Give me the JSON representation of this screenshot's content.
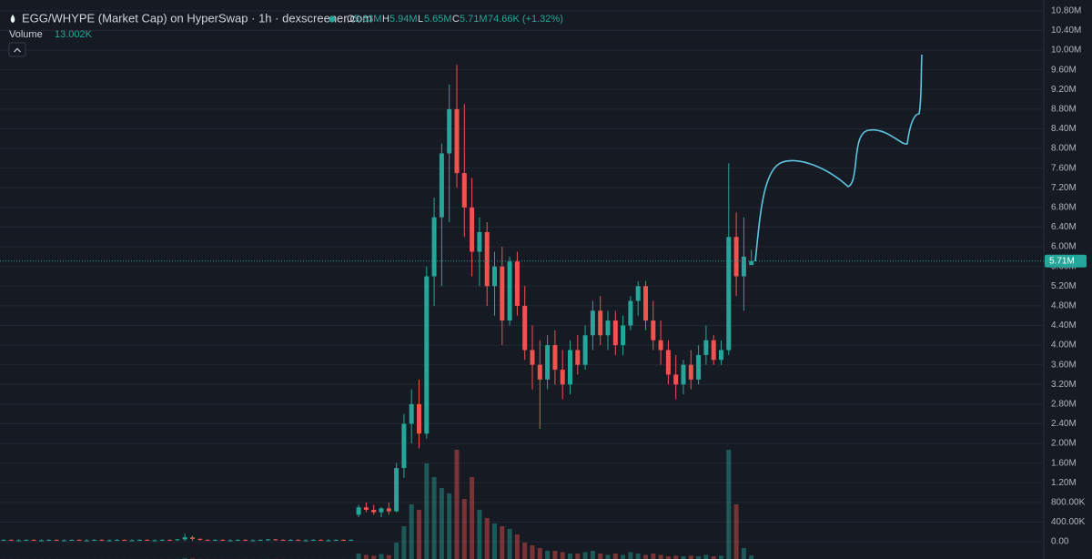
{
  "header": {
    "title": "EGG/WHYPE (Market Cap) on HyperSwap · 1h · dexscreener.com",
    "ohlc": [
      {
        "key": "O",
        "value": "5.63M"
      },
      {
        "key": "H",
        "value": "5.94M"
      },
      {
        "key": "L",
        "value": "5.65M"
      },
      {
        "key": "C",
        "value": "5.71M"
      }
    ],
    "change": "74.66K (+1.32%)",
    "volume_label": "Volume",
    "volume_value": "13.002K"
  },
  "chart_data": {
    "type": "candlestick",
    "open": [
      0.03,
      0.04,
      0.03,
      0.03,
      0.04,
      0.03,
      0.03,
      0.04,
      0.03,
      0.03,
      0.04,
      0.03,
      0.03,
      0.04,
      0.03,
      0.03,
      0.04,
      0.03,
      0.03,
      0.04,
      0.03,
      0.03,
      0.04,
      0.03,
      0.05,
      0.09,
      0.06,
      0.04,
      0.03,
      0.04,
      0.03,
      0.03,
      0.04,
      0.03,
      0.03,
      0.04,
      0.05,
      0.04,
      0.03,
      0.04,
      0.03,
      0.03,
      0.04,
      0.03,
      0.03,
      0.04,
      0.03,
      0.55,
      0.7,
      0.65,
      0.6,
      0.68,
      0.62,
      1.5,
      2.4,
      2.8,
      2.2,
      5.4,
      6.6,
      7.9,
      8.8,
      7.5,
      6.8,
      5.9,
      6.3,
      5.2,
      5.6,
      4.5,
      5.7,
      4.8,
      3.9,
      3.6,
      3.3,
      4.0,
      3.5,
      3.2,
      3.9,
      3.6,
      4.2,
      4.7,
      4.2,
      4.5,
      4.0,
      4.4,
      4.9,
      5.2,
      4.5,
      4.1,
      3.9,
      3.4,
      3.2,
      3.6,
      3.3,
      3.8,
      4.1,
      3.7,
      3.9,
      6.2,
      5.4,
      5.63
    ],
    "high": [
      0.05,
      0.05,
      0.05,
      0.05,
      0.05,
      0.05,
      0.05,
      0.05,
      0.05,
      0.05,
      0.05,
      0.05,
      0.05,
      0.05,
      0.05,
      0.05,
      0.05,
      0.05,
      0.05,
      0.05,
      0.05,
      0.05,
      0.05,
      0.06,
      0.16,
      0.12,
      0.07,
      0.05,
      0.05,
      0.05,
      0.05,
      0.05,
      0.05,
      0.05,
      0.05,
      0.06,
      0.06,
      0.05,
      0.05,
      0.05,
      0.05,
      0.05,
      0.05,
      0.05,
      0.05,
      0.05,
      0.05,
      0.75,
      0.8,
      0.75,
      0.7,
      0.8,
      1.6,
      2.6,
      3.1,
      3.3,
      5.6,
      7.0,
      8.1,
      9.3,
      9.7,
      8.9,
      7.4,
      6.6,
      6.5,
      5.9,
      6.0,
      5.8,
      5.9,
      5.2,
      4.4,
      4.1,
      4.2,
      4.3,
      3.9,
      4.1,
      4.2,
      4.4,
      4.9,
      5.0,
      4.7,
      4.7,
      4.6,
      5.0,
      5.3,
      5.3,
      4.9,
      4.5,
      4.1,
      3.8,
      3.7,
      3.9,
      4.0,
      4.4,
      4.2,
      4.1,
      7.7,
      6.7,
      6.6,
      5.94
    ],
    "low": [
      0.02,
      0.02,
      0.02,
      0.02,
      0.02,
      0.02,
      0.02,
      0.02,
      0.02,
      0.02,
      0.02,
      0.02,
      0.02,
      0.02,
      0.02,
      0.02,
      0.02,
      0.02,
      0.02,
      0.02,
      0.02,
      0.02,
      0.02,
      0.02,
      0.02,
      0.02,
      0.02,
      0.02,
      0.02,
      0.02,
      0.02,
      0.02,
      0.02,
      0.02,
      0.02,
      0.02,
      0.02,
      0.02,
      0.02,
      0.02,
      0.02,
      0.02,
      0.02,
      0.02,
      0.02,
      0.02,
      0.02,
      0.5,
      0.6,
      0.55,
      0.5,
      0.55,
      0.6,
      1.3,
      2.0,
      1.9,
      2.1,
      4.8,
      5.2,
      6.5,
      7.2,
      6.2,
      5.4,
      5.2,
      4.8,
      4.6,
      4.0,
      4.4,
      4.6,
      3.7,
      3.1,
      2.3,
      3.1,
      3.2,
      2.9,
      3.0,
      3.4,
      3.5,
      3.9,
      4.0,
      3.9,
      3.8,
      3.8,
      4.3,
      4.6,
      4.3,
      3.9,
      3.6,
      3.2,
      2.9,
      3.0,
      3.1,
      3.2,
      3.6,
      3.6,
      3.6,
      3.8,
      5.0,
      4.7,
      5.65
    ],
    "close": [
      0.04,
      0.03,
      0.03,
      0.04,
      0.03,
      0.03,
      0.04,
      0.03,
      0.03,
      0.04,
      0.03,
      0.03,
      0.04,
      0.03,
      0.03,
      0.04,
      0.03,
      0.03,
      0.04,
      0.03,
      0.03,
      0.04,
      0.03,
      0.05,
      0.09,
      0.06,
      0.04,
      0.03,
      0.04,
      0.03,
      0.03,
      0.04,
      0.03,
      0.03,
      0.04,
      0.05,
      0.04,
      0.03,
      0.04,
      0.03,
      0.03,
      0.04,
      0.03,
      0.03,
      0.04,
      0.03,
      0.04,
      0.7,
      0.65,
      0.6,
      0.68,
      0.62,
      1.5,
      2.4,
      2.8,
      2.2,
      5.4,
      6.6,
      7.9,
      8.8,
      7.5,
      6.8,
      5.9,
      6.3,
      5.2,
      5.6,
      4.5,
      5.7,
      4.8,
      3.9,
      3.6,
      3.3,
      4.0,
      3.5,
      3.2,
      3.9,
      3.6,
      4.2,
      4.7,
      4.2,
      4.5,
      4.0,
      4.4,
      4.9,
      5.2,
      4.5,
      4.1,
      3.9,
      3.4,
      3.2,
      3.6,
      3.3,
      3.8,
      4.1,
      3.7,
      3.9,
      6.2,
      5.4,
      5.8,
      5.71
    ],
    "volume": [
      0.3,
      0.3,
      0.3,
      0.3,
      0.3,
      0.3,
      0.3,
      0.3,
      0.3,
      0.3,
      0.3,
      0.3,
      0.3,
      0.3,
      0.3,
      0.3,
      0.3,
      0.3,
      0.3,
      0.3,
      0.3,
      0.3,
      0.3,
      0.5,
      3,
      2,
      0.5,
      0.3,
      0.3,
      0.3,
      0.3,
      0.3,
      0.3,
      0.3,
      0.3,
      0.5,
      0.5,
      0.3,
      0.3,
      0.3,
      0.3,
      0.3,
      0.3,
      0.3,
      0.3,
      0.3,
      0.3,
      20,
      15,
      12,
      18,
      14,
      60,
      120,
      200,
      180,
      350,
      300,
      260,
      240,
      400,
      220,
      300,
      180,
      150,
      130,
      120,
      110,
      90,
      60,
      50,
      40,
      30,
      30,
      25,
      20,
      20,
      25,
      30,
      20,
      15,
      20,
      15,
      25,
      20,
      15,
      20,
      15,
      10,
      12,
      10,
      12,
      10,
      15,
      10,
      12,
      400,
      200,
      40,
      13.002
    ],
    "up_color": "#26a69a",
    "down_color": "#ef5350",
    "ylim": [
      -0.35,
      11.02
    ],
    "yticks": [
      {
        "value": 0,
        "label": "0.00"
      },
      {
        "value": 0.4,
        "label": "400.00K"
      },
      {
        "value": 0.8,
        "label": "800.00K"
      },
      {
        "value": 1.2,
        "label": "1.20M"
      },
      {
        "value": 1.6,
        "label": "1.60M"
      },
      {
        "value": 2.0,
        "label": "2.00M"
      },
      {
        "value": 2.4,
        "label": "2.40M"
      },
      {
        "value": 2.8,
        "label": "2.80M"
      },
      {
        "value": 3.2,
        "label": "3.20M"
      },
      {
        "value": 3.6,
        "label": "3.60M"
      },
      {
        "value": 4.0,
        "label": "4.00M"
      },
      {
        "value": 4.4,
        "label": "4.40M"
      },
      {
        "value": 4.8,
        "label": "4.80M"
      },
      {
        "value": 5.2,
        "label": "5.20M"
      },
      {
        "value": 5.6,
        "label": "5.60M"
      },
      {
        "value": 6.0,
        "label": "6.00M"
      },
      {
        "value": 6.4,
        "label": "6.40M"
      },
      {
        "value": 6.8,
        "label": "6.80M"
      },
      {
        "value": 7.2,
        "label": "7.20M"
      },
      {
        "value": 7.6,
        "label": "7.60M"
      },
      {
        "value": 8.0,
        "label": "8.00M"
      },
      {
        "value": 8.4,
        "label": "8.40M"
      },
      {
        "value": 8.8,
        "label": "8.80M"
      },
      {
        "value": 9.2,
        "label": "9.20M"
      },
      {
        "value": 9.6,
        "label": "9.60M"
      },
      {
        "value": 10.0,
        "label": "10.00M"
      },
      {
        "value": 10.4,
        "label": "10.40M"
      },
      {
        "value": 10.8,
        "label": "10.80M"
      }
    ],
    "last_price": {
      "value": 5.71,
      "label": "5.71M"
    },
    "grid": true
  }
}
